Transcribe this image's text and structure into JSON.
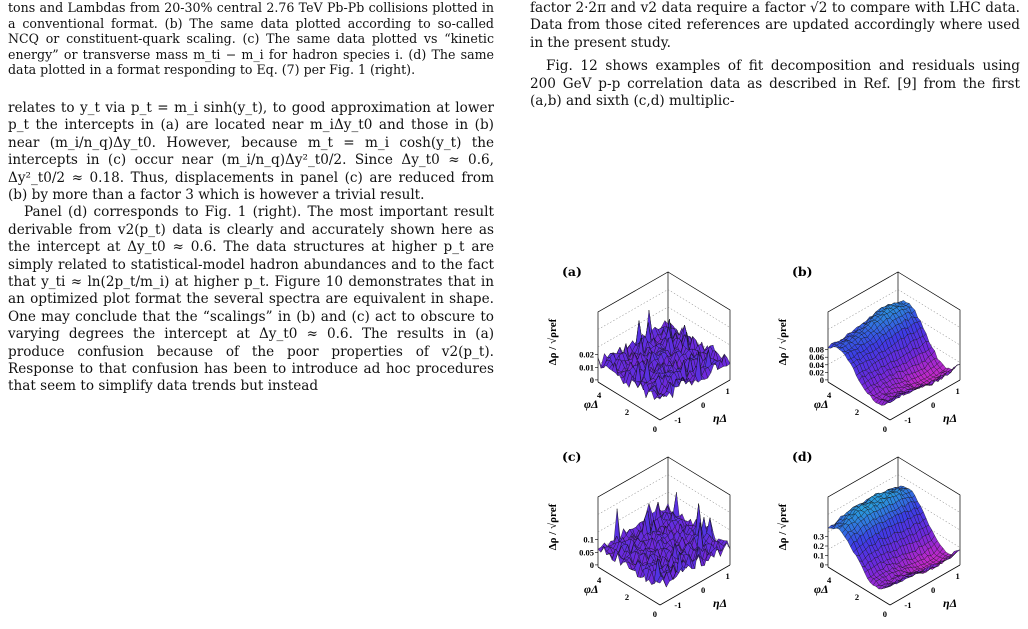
{
  "left_column": {
    "caption": "tons and Lambdas from 20-30% central 2.76 TeV Pb-Pb collisions plotted in a conventional format. (b) The same data plotted according to so-called NCQ or constituent-quark scaling. (c) The same data plotted vs “kinetic energy” or transverse mass m_ti − m_i for hadron species i. (d) The same data plotted in a format responding to Eq. (7) per Fig. 1 (right).",
    "para1": "relates to y_t via p_t = m_i sinh(y_t), to good approximation at lower p_t the intercepts in (a) are located near m_iΔy_t0 and those in (b) near (m_i/n_q)Δy_t0. However, because m_t = m_i cosh(y_t) the intercepts in (c) occur near (m_i/n_q)Δy²_t0/2. Since Δy_t0 ≈ 0.6, Δy²_t0/2 ≈ 0.18. Thus, displacements in panel (c) are reduced from (b) by more than a factor 3 which is however a trivial result.",
    "para2": "Panel (d) corresponds to Fig. 1 (right). The most important result derivable from v2(p_t) data is clearly and accurately shown here as the intercept at Δy_t0 ≈ 0.6. The data structures at higher p_t are simply related to statistical-model hadron abundances and to the fact that y_ti ≈ ln(2p_t/m_i) at higher p_t. Figure 10 demonstrates that in an optimized plot format the several spectra are equivalent in shape. One may conclude that the “scalings” in (b) and (c) act to obscure to varying degrees the intercept at Δy_t0 ≈ 0.6. The results in (a) produce confusion because of the poor properties of v2(p_t). Response to that confusion has been to introduce ad hoc procedures that seem to simplify data trends but instead"
  },
  "right_column": {
    "para1": "factor 2·2π and v2 data require a factor √2 to compare with LHC data. Data from those cited references are updated accordingly where used in the present study.",
    "para2": "Fig. 12 shows examples of fit decomposition and residuals using 200 GeV p-p correlation data as described in Ref. [9] from the first (a,b) and sixth (c,d) multiplic-"
  },
  "figure": {
    "z_axis_label": "Δρ / √ρref",
    "x_axis_label": "φΔ",
    "y_axis_label": "ηΔ",
    "x_ticks": [
      "4",
      "2",
      "0"
    ],
    "y_ticks": [
      "1",
      "0",
      "-1"
    ],
    "panels": [
      {
        "label": "(a)",
        "z_ticks": [
          "0.02",
          "0.01",
          "0"
        ],
        "style": "noise"
      },
      {
        "label": "(b)",
        "z_ticks": [
          "0.08",
          "0.06",
          "0.04",
          "0.02",
          "0"
        ],
        "style": "peak"
      },
      {
        "label": "(c)",
        "z_ticks": [
          "0.1",
          "0.05",
          "0"
        ],
        "style": "noise"
      },
      {
        "label": "(d)",
        "z_ticks": [
          "0.3",
          "0.2",
          "0.1",
          "0"
        ],
        "style": "peak"
      }
    ]
  }
}
